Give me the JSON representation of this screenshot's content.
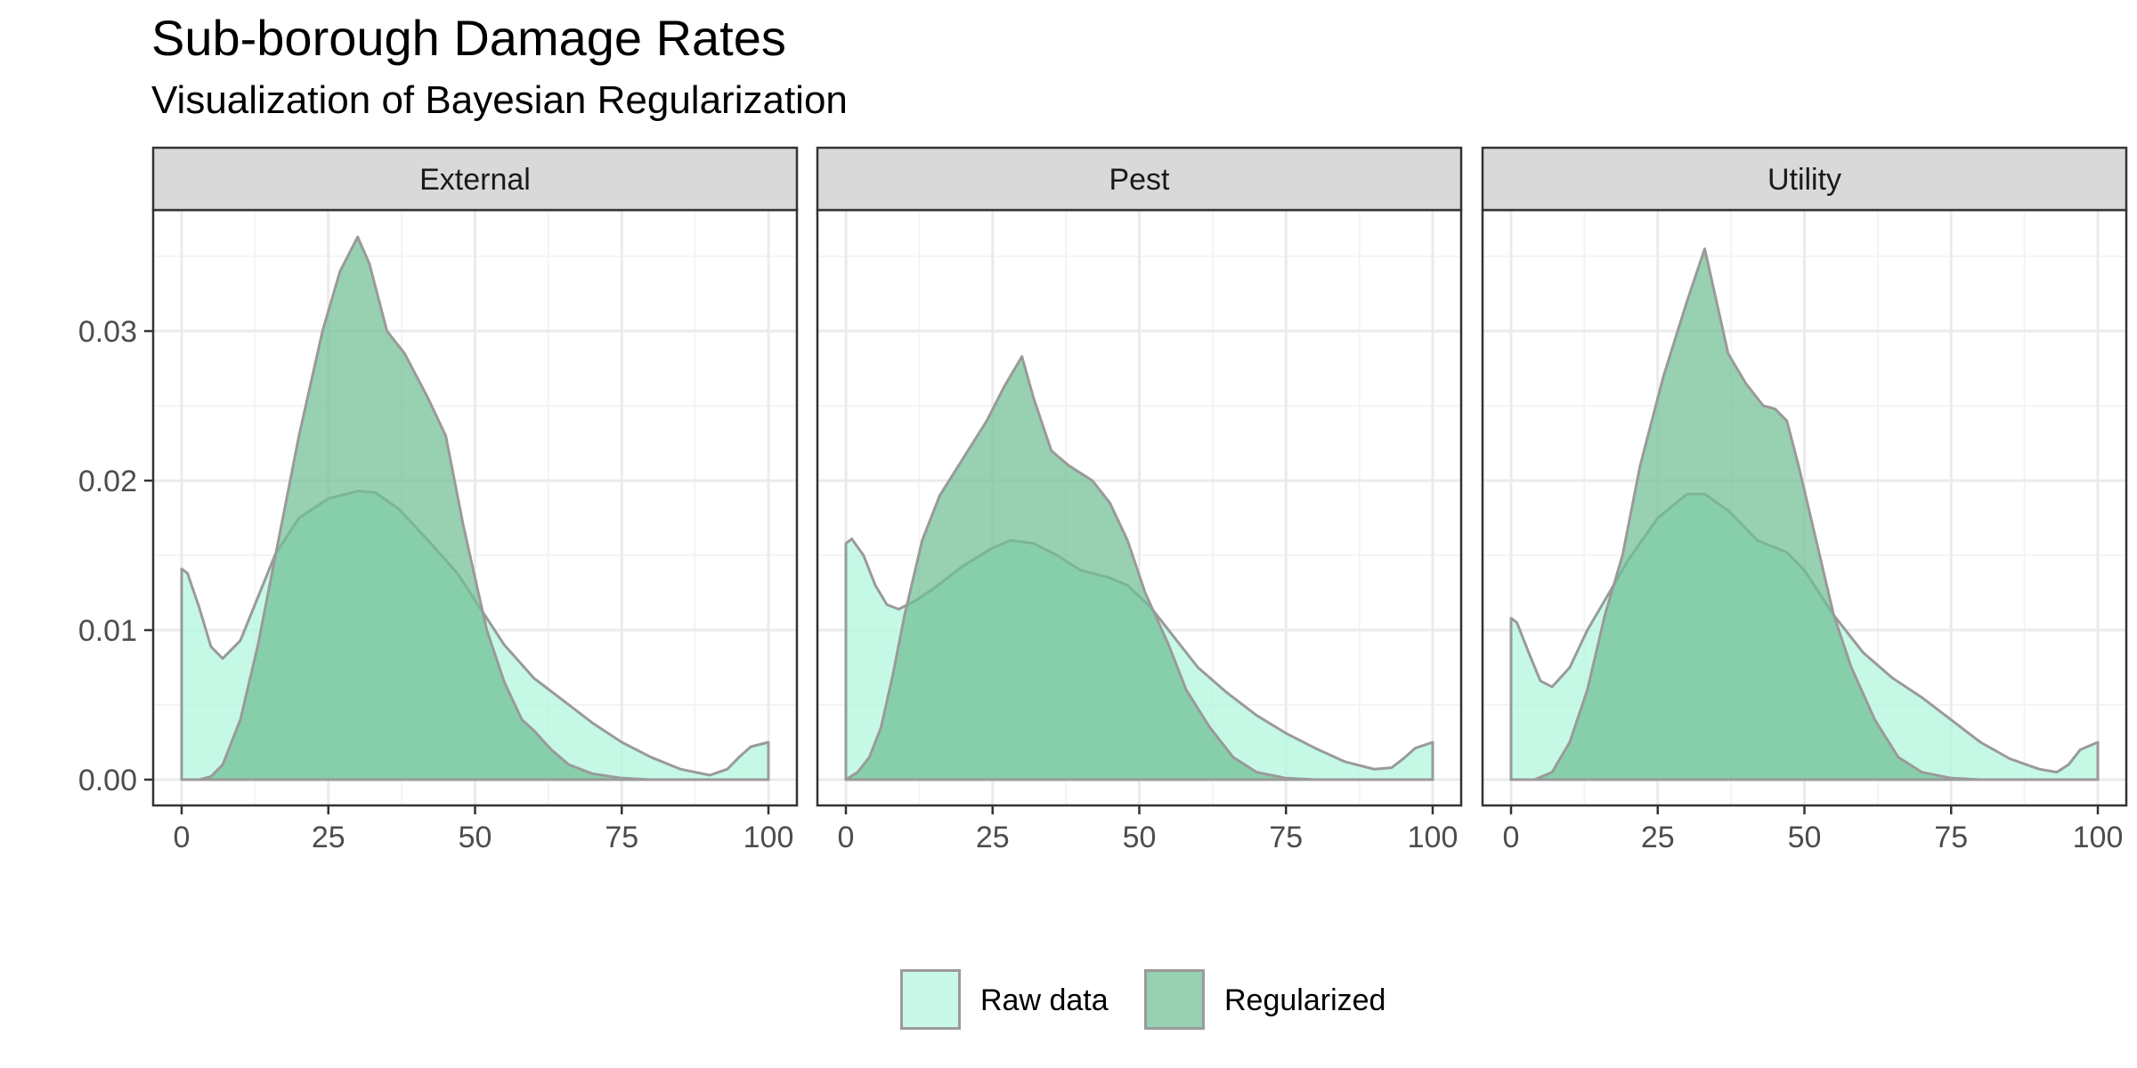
{
  "chart_data": {
    "type": "area",
    "title": "Sub-borough Damage Rates",
    "subtitle": "Visualization of Bayesian Regularization",
    "xlabel": "",
    "ylabel": "",
    "xlim": [
      0,
      100
    ],
    "ylim": [
      0,
      0.037
    ],
    "x_ticks": [
      0,
      25,
      50,
      75,
      100
    ],
    "x_tick_labels": [
      "0",
      "25",
      "50",
      "75",
      "100"
    ],
    "y_ticks": [
      0,
      0.01,
      0.02,
      0.03
    ],
    "y_tick_labels": [
      "0.00",
      "0.01",
      "0.02",
      "0.03"
    ],
    "grid": true,
    "legend_position": "bottom",
    "legend": [
      {
        "name": "Raw data",
        "color": "#b3f5de"
      },
      {
        "name": "Regularized",
        "color": "#6fbf93"
      }
    ],
    "colors": {
      "raw_fill": "#b3f5de",
      "regularized_fill": "#6fbf93",
      "outline": "#9a9a9a",
      "strip_bg": "#d9d9d9",
      "grid_major": "#ebebeb",
      "grid_minor": "#f4f4f4"
    },
    "panels": [
      {
        "label": "External",
        "series": [
          {
            "name": "Raw data",
            "x": [
              0,
              1,
              3,
              5,
              7,
              10,
              13,
              16,
              20,
              25,
              30,
              33,
              37,
              42,
              47,
              50,
              55,
              60,
              65,
              70,
              75,
              80,
              85,
              90,
              93,
              95,
              97,
              100
            ],
            "y": [
              0.0141,
              0.0138,
              0.0115,
              0.0089,
              0.0081,
              0.0093,
              0.0122,
              0.0151,
              0.0175,
              0.0188,
              0.0193,
              0.0192,
              0.0181,
              0.016,
              0.0138,
              0.012,
              0.009,
              0.0068,
              0.0053,
              0.0038,
              0.0025,
              0.0015,
              0.0007,
              0.0003,
              0.0007,
              0.0015,
              0.0022,
              0.0025
            ]
          },
          {
            "name": "Regularized",
            "x": [
              0,
              3,
              5,
              7,
              10,
              13,
              16,
              20,
              24,
              27,
              30,
              32,
              35,
              38,
              42,
              45,
              48,
              52,
              55,
              58,
              60,
              63,
              66,
              70,
              75,
              80,
              100
            ],
            "y": [
              0,
              0,
              0.0002,
              0.001,
              0.004,
              0.009,
              0.015,
              0.023,
              0.03,
              0.034,
              0.0363,
              0.0345,
              0.03,
              0.0285,
              0.0255,
              0.023,
              0.017,
              0.01,
              0.0065,
              0.004,
              0.0033,
              0.002,
              0.001,
              0.0004,
              0.0001,
              0,
              0
            ]
          }
        ]
      },
      {
        "label": "Pest",
        "series": [
          {
            "name": "Raw data",
            "x": [
              0,
              1,
              3,
              5,
              7,
              9,
              12,
              15,
              20,
              25,
              28,
              32,
              36,
              40,
              45,
              48,
              52,
              56,
              60,
              65,
              70,
              75,
              80,
              85,
              90,
              93,
              95,
              97,
              100
            ],
            "y": [
              0.0158,
              0.0161,
              0.015,
              0.013,
              0.0117,
              0.0114,
              0.012,
              0.0128,
              0.0143,
              0.0155,
              0.016,
              0.0158,
              0.015,
              0.014,
              0.0135,
              0.013,
              0.0115,
              0.0095,
              0.0075,
              0.0058,
              0.0043,
              0.0031,
              0.0021,
              0.0012,
              0.0007,
              0.0008,
              0.0014,
              0.0021,
              0.0025
            ]
          },
          {
            "name": "Regularized",
            "x": [
              0,
              2,
              4,
              6,
              8,
              10,
              13,
              16,
              20,
              24,
              27,
              30,
              32,
              35,
              38,
              42,
              45,
              48,
              51,
              55,
              58,
              62,
              66,
              70,
              75,
              80,
              100
            ],
            "y": [
              0,
              0.0005,
              0.0015,
              0.0035,
              0.007,
              0.011,
              0.016,
              0.019,
              0.0215,
              0.024,
              0.0263,
              0.0283,
              0.0255,
              0.022,
              0.021,
              0.02,
              0.0185,
              0.016,
              0.0125,
              0.009,
              0.006,
              0.0035,
              0.0015,
              0.0005,
              0.0001,
              0,
              0
            ]
          }
        ]
      },
      {
        "label": "Utility",
        "series": [
          {
            "name": "Raw data",
            "x": [
              0,
              1,
              3,
              5,
              7,
              10,
              13,
              16,
              20,
              25,
              30,
              33,
              37,
              42,
              47,
              50,
              55,
              60,
              65,
              70,
              75,
              80,
              85,
              90,
              93,
              95,
              97,
              100
            ],
            "y": [
              0.0108,
              0.0105,
              0.0085,
              0.0066,
              0.0062,
              0.0075,
              0.01,
              0.012,
              0.0147,
              0.0175,
              0.0191,
              0.0191,
              0.018,
              0.016,
              0.0152,
              0.014,
              0.011,
              0.0085,
              0.0068,
              0.0055,
              0.004,
              0.0025,
              0.0014,
              0.0007,
              0.0005,
              0.001,
              0.002,
              0.0025
            ]
          },
          {
            "name": "Regularized",
            "x": [
              0,
              4,
              7,
              10,
              13,
              16,
              19,
              22,
              26,
              30,
              33,
              35,
              37,
              40,
              43,
              45,
              47,
              49,
              52,
              55,
              58,
              62,
              66,
              70,
              75,
              80,
              100
            ],
            "y": [
              0,
              0,
              0.0005,
              0.0025,
              0.006,
              0.011,
              0.015,
              0.021,
              0.027,
              0.032,
              0.0355,
              0.032,
              0.0285,
              0.0265,
              0.025,
              0.0248,
              0.024,
              0.021,
              0.016,
              0.011,
              0.0075,
              0.004,
              0.0015,
              0.0005,
              0.0001,
              0,
              0
            ]
          }
        ]
      }
    ]
  }
}
